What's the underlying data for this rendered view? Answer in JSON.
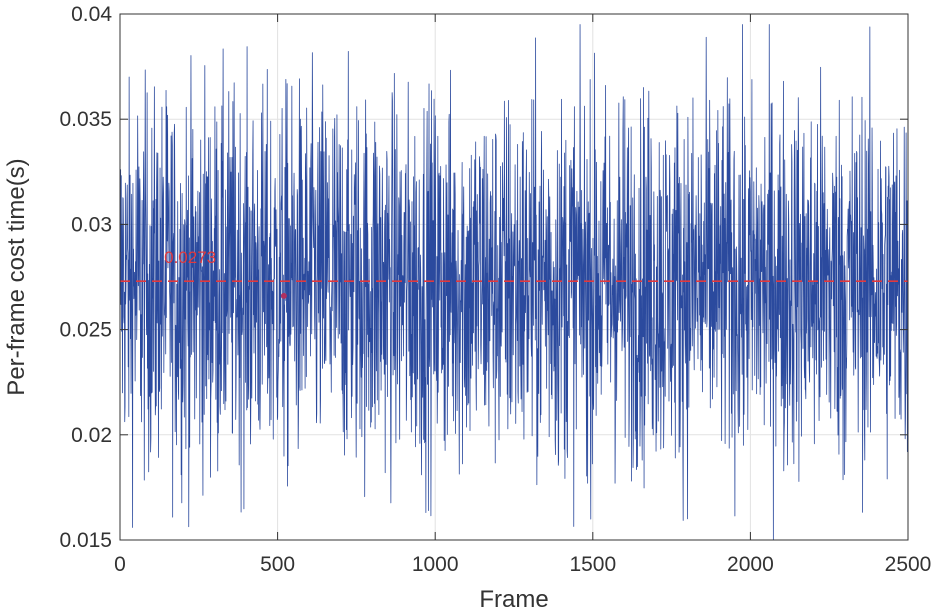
{
  "chart_data": {
    "type": "line",
    "title": "",
    "xlabel": "Frame",
    "ylabel": "Per-frame cost time(s)",
    "xlim": [
      0,
      2500
    ],
    "ylim": [
      0.015,
      0.04
    ],
    "x_ticks": [
      "0",
      "500",
      "1000",
      "1500",
      "2000",
      "2500"
    ],
    "y_ticks": [
      "0.015",
      "0.02",
      "0.025",
      "0.03",
      "0.035",
      "0.04"
    ],
    "grid": true,
    "series": [
      {
        "color": "#2b4a9e",
        "n_points": 2500,
        "range": [
          0.015,
          0.0395
        ],
        "mean": 0.0273
      }
    ],
    "reference_line": {
      "value": 0.0273,
      "label": "0.0273",
      "color": "#e0393e",
      "style": "dashed"
    },
    "annotations": [
      {
        "x": 520,
        "y": 0.0266,
        "marker": "circle",
        "color": "#b03060"
      }
    ]
  }
}
